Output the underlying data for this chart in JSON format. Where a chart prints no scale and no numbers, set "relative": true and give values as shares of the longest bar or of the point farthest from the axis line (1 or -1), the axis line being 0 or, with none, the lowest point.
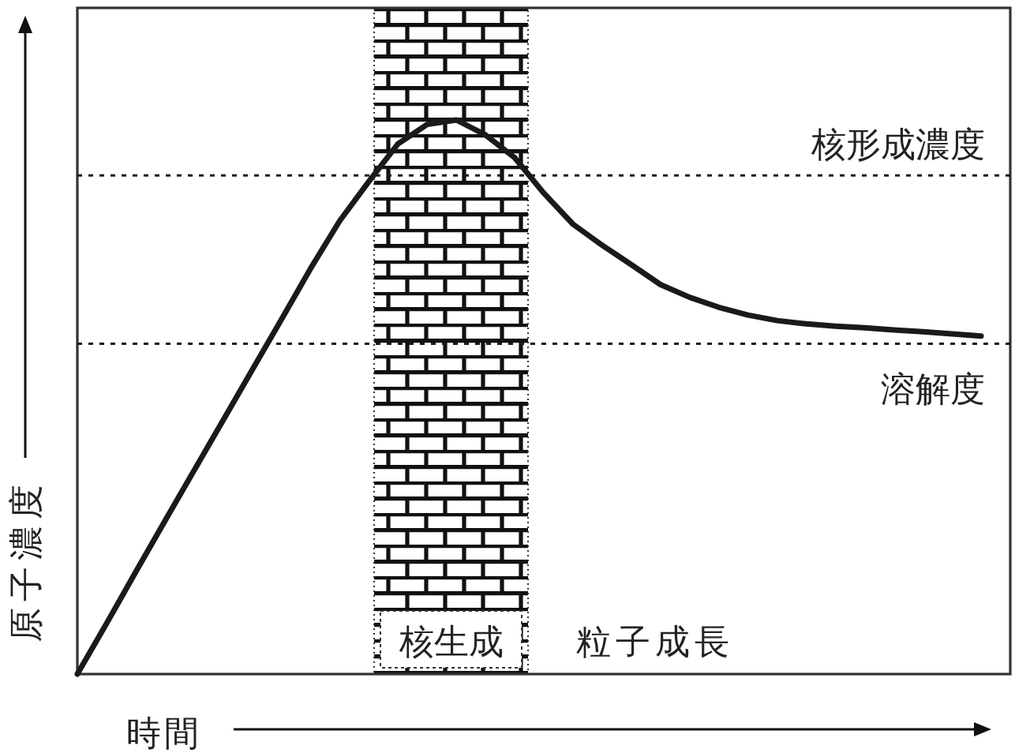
{
  "chart_data": {
    "type": "line",
    "relative": true,
    "xlabel": "時間",
    "ylabel": "原子濃度",
    "categories": [
      null,
      null,
      null,
      null,
      null,
      null,
      null,
      null,
      null,
      null,
      null,
      null,
      null,
      null,
      null,
      null,
      null,
      null,
      null,
      null,
      null,
      null,
      null,
      null,
      null,
      null,
      null,
      null,
      null,
      null,
      null,
      null,
      null
    ],
    "series": [
      {
        "color": "#1a1a1a",
        "values": [
          0,
          0.091,
          0.184,
          0.276,
          0.367,
          0.458,
          0.549,
          0.64,
          0.732,
          0.818,
          0.889,
          0.957,
          0.992,
          1,
          0.973,
          0.932,
          0.868,
          0.812,
          0.774,
          0.739,
          0.703,
          0.68,
          0.662,
          0.648,
          0.638,
          0.632,
          0.628,
          0.625,
          0.621,
          0.618,
          0.614,
          0.61,
          null
        ]
      }
    ],
    "ref_lines": [
      {
        "axis": "y",
        "value": 0.9,
        "label": "核形成濃度",
        "line_style": "dotted",
        "color": "#1a1a1a"
      },
      {
        "axis": "y",
        "value": 0.596,
        "label": "溶解度",
        "line_style": "dotted",
        "color": "#1a1a1a"
      }
    ],
    "annotations": [
      "核生成",
      "粒子成長"
    ],
    "grid": false,
    "marker": "none",
    "line_style": "solid"
  }
}
